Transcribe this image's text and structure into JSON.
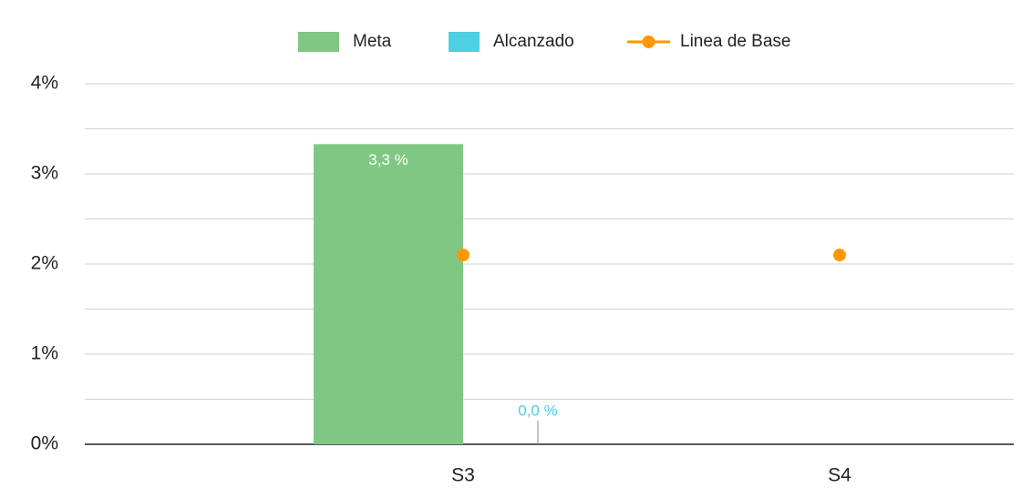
{
  "chart_data": {
    "type": "bar",
    "categories": [
      "S3",
      "S4"
    ],
    "series": [
      {
        "name": "Meta",
        "color": "#81c784",
        "type": "bar",
        "values": [
          3.33,
          null
        ],
        "value_labels": [
          "3,3 %",
          null
        ],
        "label_color": "#ffffff"
      },
      {
        "name": "Alcanzado",
        "color": "#4dd0e1",
        "type": "bar",
        "values": [
          0,
          null
        ],
        "value_labels": [
          "0,0 %",
          null
        ],
        "label_color": "#4dd0e1"
      },
      {
        "name": "Linea de Base",
        "color": "#ff9800",
        "type": "line",
        "values": [
          2.1,
          2.1
        ]
      }
    ],
    "ylim": [
      0,
      4
    ],
    "yticks": [
      {
        "value": 0,
        "label": "0%"
      },
      {
        "value": 1,
        "label": "1%"
      },
      {
        "value": 2,
        "label": "2%"
      },
      {
        "value": 3,
        "label": "3%"
      },
      {
        "value": 4,
        "label": "4%"
      }
    ],
    "minor_yticks": [
      0.5,
      1.5,
      2.5,
      3.5
    ],
    "grid": true,
    "legend": "top"
  }
}
